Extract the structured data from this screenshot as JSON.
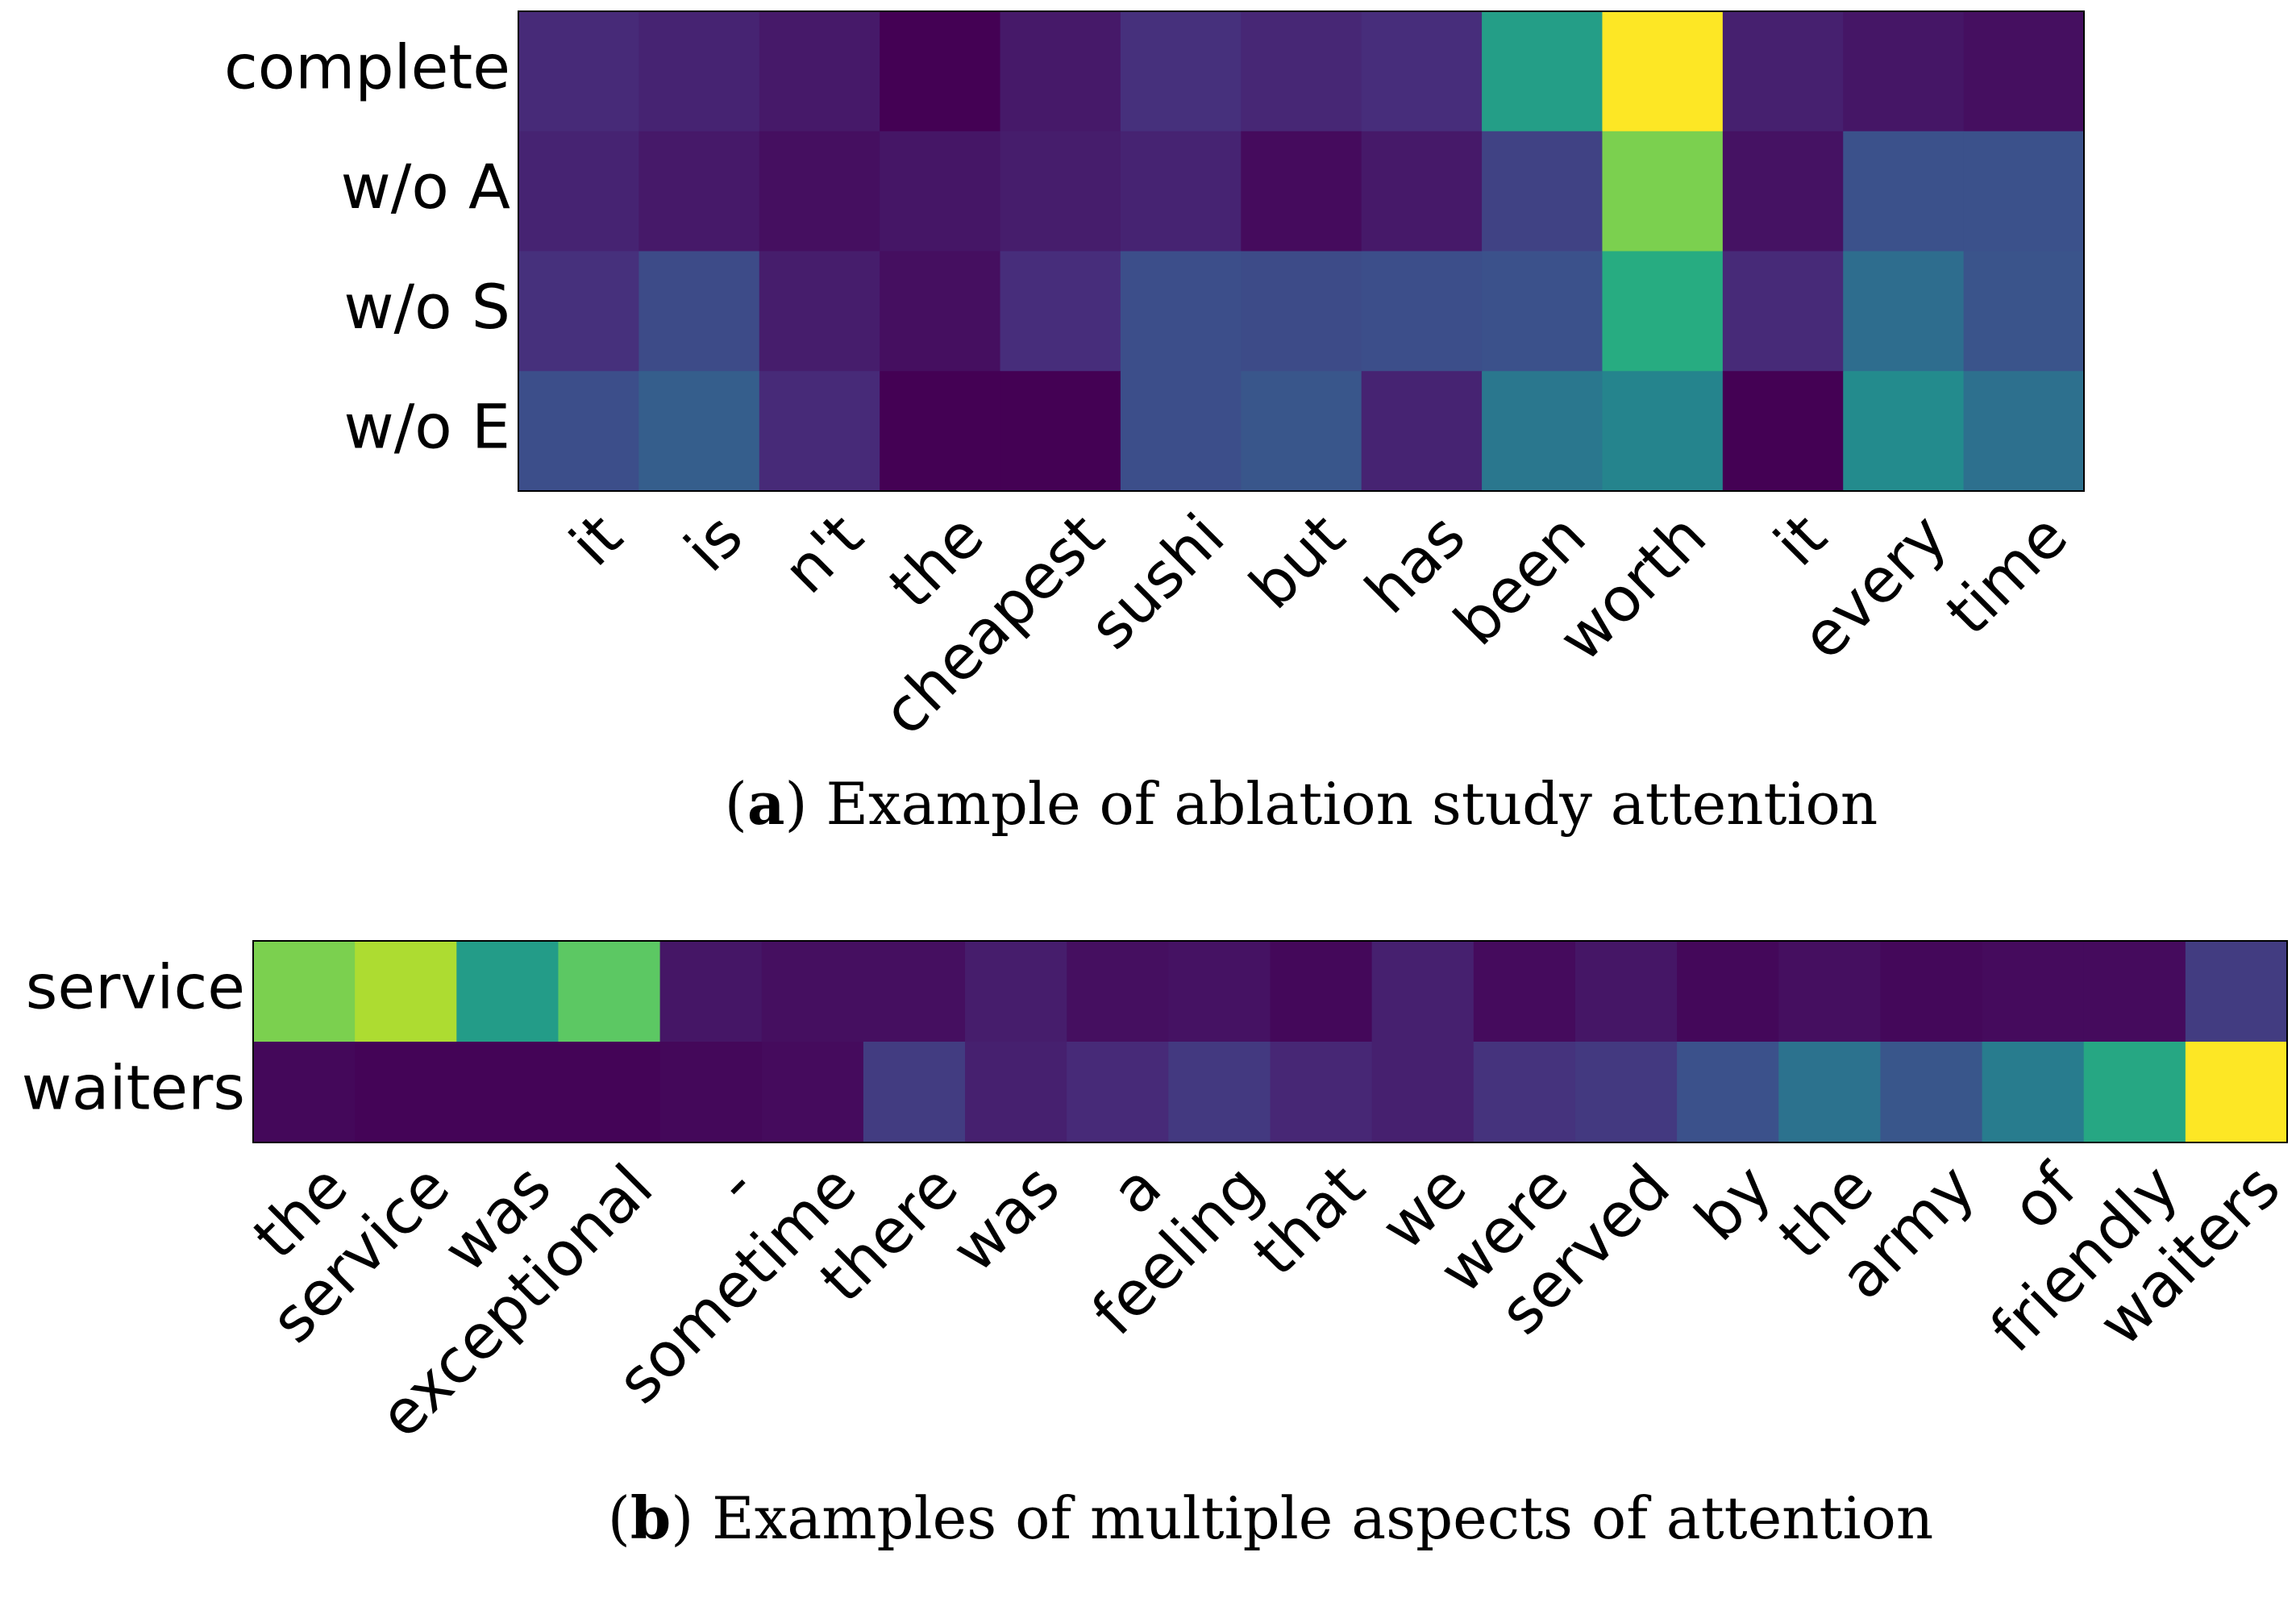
{
  "chart_data": [
    {
      "type": "heatmap",
      "colormap": "viridis",
      "value_range": [
        0,
        1
      ],
      "caption_prefix": "(",
      "caption_tag": "a",
      "caption_suffix": ") Example of ablation study attention",
      "rows": [
        "complete",
        "w/o A",
        "w/o S",
        "w/o E"
      ],
      "columns": [
        "it",
        "is",
        "n't",
        "the",
        "cheapest",
        "sushi",
        "but",
        "has",
        "been",
        "worth",
        "it",
        "every",
        "time"
      ],
      "values": [
        [
          0.12,
          0.1,
          0.07,
          0.0,
          0.07,
          0.14,
          0.11,
          0.13,
          0.56,
          1.0,
          0.09,
          0.06,
          0.04
        ],
        [
          0.1,
          0.07,
          0.04,
          0.06,
          0.08,
          0.1,
          0.03,
          0.07,
          0.2,
          0.8,
          0.05,
          0.25,
          0.25
        ],
        [
          0.14,
          0.23,
          0.08,
          0.04,
          0.13,
          0.24,
          0.23,
          0.24,
          0.25,
          0.62,
          0.12,
          0.36,
          0.26
        ],
        [
          0.24,
          0.3,
          0.12,
          0.0,
          0.0,
          0.24,
          0.27,
          0.1,
          0.4,
          0.45,
          0.0,
          0.48,
          0.37
        ]
      ]
    },
    {
      "type": "heatmap",
      "colormap": "viridis",
      "value_range": [
        0,
        1
      ],
      "caption_prefix": "(",
      "caption_tag": "b",
      "caption_suffix": ") Examples of multiple aspects of attention",
      "rows": [
        "service",
        "waiters"
      ],
      "columns": [
        "the",
        "service",
        "was",
        "exceptional",
        "-",
        "sometime",
        "there",
        "was",
        "a",
        "feeling",
        "that",
        "we",
        "were",
        "served",
        "by",
        "the",
        "army",
        "of",
        "friendly",
        "waiters"
      ],
      "values": [
        [
          0.8,
          0.88,
          0.55,
          0.75,
          0.06,
          0.04,
          0.04,
          0.08,
          0.04,
          0.05,
          0.02,
          0.09,
          0.03,
          0.06,
          0.02,
          0.04,
          0.02,
          0.03,
          0.03,
          0.18
        ],
        [
          0.02,
          0.01,
          0.01,
          0.01,
          0.02,
          0.03,
          0.18,
          0.09,
          0.12,
          0.17,
          0.11,
          0.09,
          0.15,
          0.17,
          0.25,
          0.38,
          0.27,
          0.42,
          0.6,
          1.0
        ]
      ]
    }
  ]
}
